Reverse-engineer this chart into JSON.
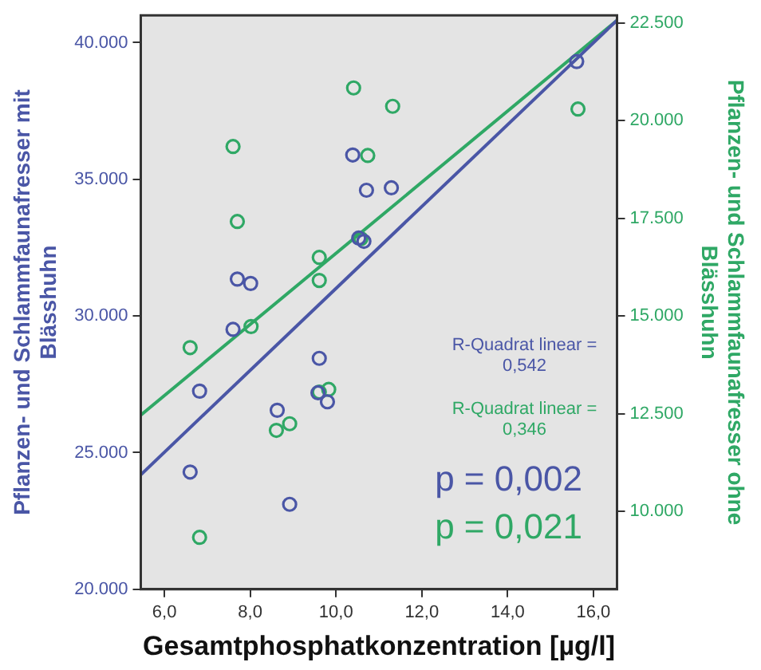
{
  "chart_data": {
    "type": "scatter",
    "xlabel": "Gesamtphosphatkonzentration [µg/l]",
    "ylabel": "Pflanzen- und Schlammfaunafresser mit Blässhuhn",
    "y2label": "Pflanzen- und Schlammfaunafresser ohne Blässhuhn",
    "xlim": [
      5.45,
      16.55
    ],
    "xticks": [
      {
        "value": 6,
        "label": "6,0"
      },
      {
        "value": 8,
        "label": "8,0"
      },
      {
        "value": 10,
        "label": "10,0"
      },
      {
        "value": 12,
        "label": "12,0"
      },
      {
        "value": 14,
        "label": "14,0"
      },
      {
        "value": 16,
        "label": "16,0"
      }
    ],
    "ylim": [
      20000,
      41000
    ],
    "yticks": [
      {
        "value": 20000,
        "label": "20.000"
      },
      {
        "value": 25000,
        "label": "25.000"
      },
      {
        "value": 30000,
        "label": "30.000"
      },
      {
        "value": 35000,
        "label": "35.000"
      },
      {
        "value": 40000,
        "label": "40.000"
      }
    ],
    "y2lim": [
      8000,
      22700
    ],
    "y2ticks": [
      {
        "value": 10000,
        "label": "10.000"
      },
      {
        "value": 12500,
        "label": "12.500"
      },
      {
        "value": 15000,
        "label": "15.000"
      },
      {
        "value": 17500,
        "label": "17.500"
      },
      {
        "value": 20000,
        "label": "20.000"
      },
      {
        "value": 22500,
        "label": "22.500"
      }
    ],
    "grid": false,
    "legend": false,
    "marker": "circle",
    "series": [
      {
        "type": "scatter",
        "color": "#4a56a6",
        "x": [
          10.39,
          10.71,
          11.29,
          10.53,
          10.65,
          7.7,
          8.01,
          15.61,
          7.6,
          6.82,
          9.61,
          9.58,
          9.8,
          8.63,
          6.6,
          8.92
        ],
        "values": [
          35890,
          34600,
          34690,
          32850,
          32730,
          31350,
          31190,
          39310,
          29510,
          27250,
          28450,
          27190,
          26860,
          26550,
          24290,
          23110
        ]
      },
      {
        "type": "scatter",
        "axis": "y2",
        "color": "#2fa865",
        "x": [
          10.41,
          11.32,
          7.6,
          10.74,
          7.7,
          9.61,
          9.61,
          10.58,
          15.64,
          6.6,
          8.02,
          9.61,
          9.83,
          8.61,
          8.92,
          6.82
        ],
        "values": [
          20840,
          20370,
          19340,
          19110,
          17420,
          16500,
          15910,
          16980,
          20300,
          14190,
          14730,
          13050,
          13120,
          12070,
          12240,
          9330
        ]
      },
      {
        "type": "line",
        "marker": "none",
        "color": "#4a56a6",
        "x": [
          5.45,
          16.55
        ],
        "values": [
          24190,
          40820
        ]
      },
      {
        "type": "line",
        "marker": "none",
        "axis": "y2",
        "color": "#2fa865",
        "x": [
          5.45,
          16.55
        ],
        "values": [
          12460,
          22570
        ]
      }
    ],
    "annotations": [
      "R-Quadrat linear = 0,542",
      "R-Quadrat linear = 0,346",
      "p = 0,002",
      "p = 0,021"
    ]
  }
}
